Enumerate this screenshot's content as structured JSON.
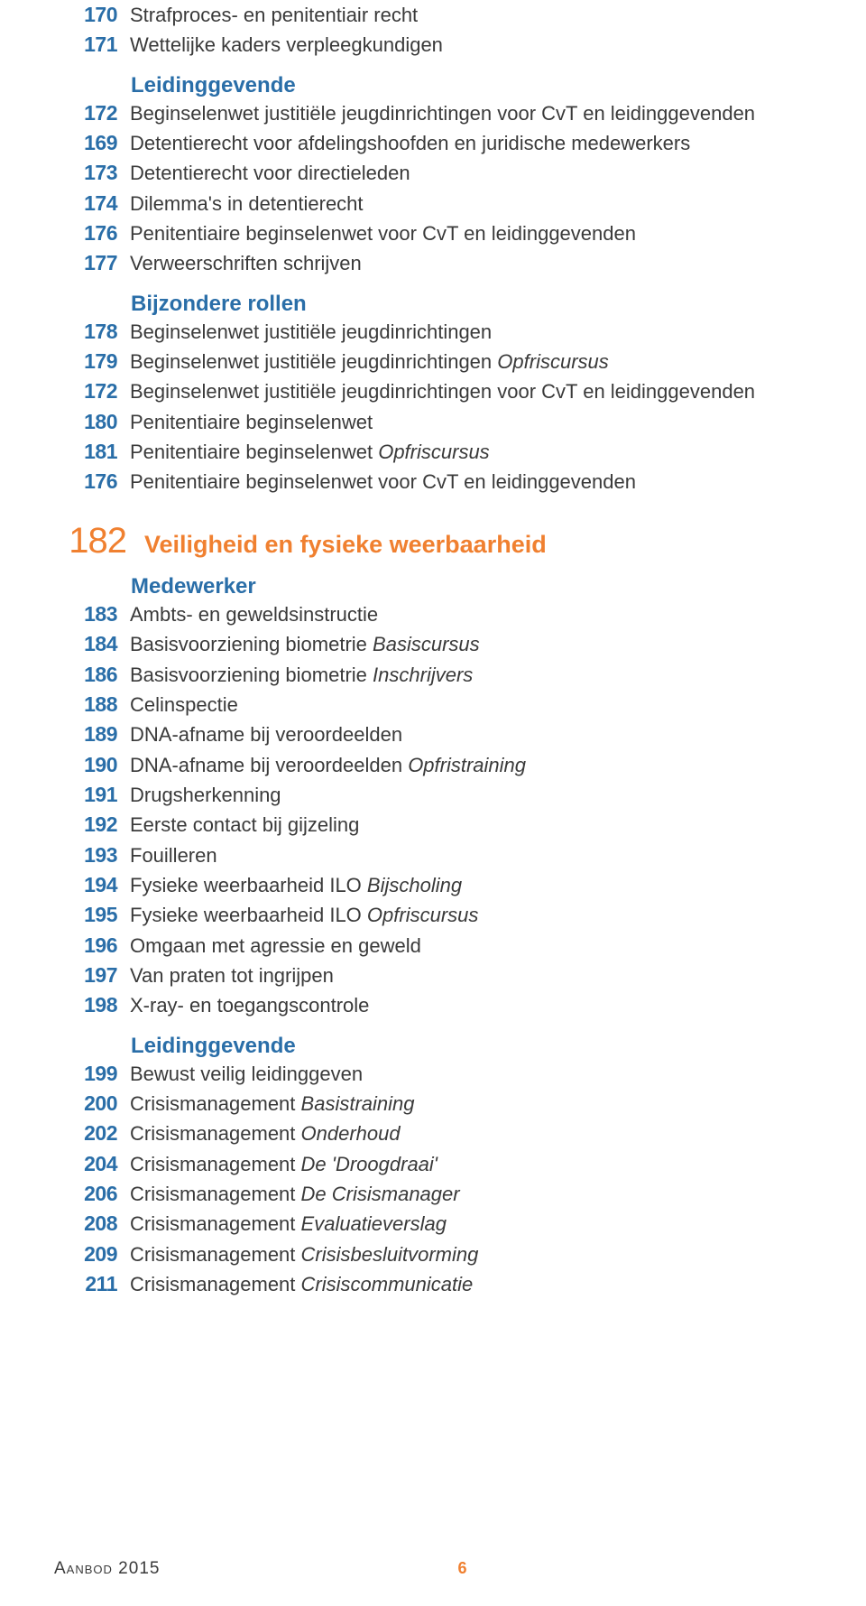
{
  "colors": {
    "blue": "#2a6ea8",
    "orange": "#f08030",
    "text": "#3a3a3a",
    "bg": "#ffffff"
  },
  "typography": {
    "row_fontsize": 22,
    "heading_fontsize": 24,
    "section_num_fontsize": 40,
    "section_title_fontsize": 27,
    "num_weight": 700
  },
  "groups": [
    {
      "items": [
        {
          "num": "170",
          "text": "Strafproces- en penitentiair recht"
        },
        {
          "num": "171",
          "text": "Wettelijke kaders verpleegkundigen"
        }
      ]
    },
    {
      "heading": "Leidinggevende",
      "items": [
        {
          "num": "172",
          "text": "Beginselenwet justitiële jeugdinrichtingen voor CvT en leidinggevenden"
        },
        {
          "num": "169",
          "text": "Detentierecht voor afdelingshoofden en juridische medewerkers"
        },
        {
          "num": "173",
          "text": "Detentierecht voor directieleden"
        },
        {
          "num": "174",
          "text": "Dilemma's in detentierecht"
        },
        {
          "num": "176",
          "text": "Penitentiaire beginselenwet voor CvT en leidinggevenden"
        },
        {
          "num": "177",
          "text": "Verweerschriften schrijven"
        }
      ]
    },
    {
      "heading": "Bijzondere rollen",
      "items": [
        {
          "num": "178",
          "text": "Beginselenwet justitiële jeugdinrichtingen"
        },
        {
          "num": "179",
          "text": "Beginselenwet justitiële jeugdinrichtingen",
          "italic": "Opfriscursus"
        },
        {
          "num": "172",
          "text": "Beginselenwet justitiële jeugdinrichtingen voor CvT en leidinggevenden"
        },
        {
          "num": "180",
          "text": "Penitentiaire beginselenwet"
        },
        {
          "num": "181",
          "text": "Penitentiaire beginselenwet",
          "italic": "Opfriscursus"
        },
        {
          "num": "176",
          "text": "Penitentiaire beginselenwet voor CvT en leidinggevenden"
        }
      ]
    }
  ],
  "section": {
    "num": "182",
    "title": "Veiligheid en fysieke weerbaarheid"
  },
  "groups2": [
    {
      "heading": "Medewerker",
      "items": [
        {
          "num": "183",
          "text": "Ambts- en geweldsinstructie"
        },
        {
          "num": "184",
          "text": "Basisvoorziening biometrie",
          "italic": "Basiscursus"
        },
        {
          "num": "186",
          "text": "Basisvoorziening biometrie",
          "italic": "Inschrijvers"
        },
        {
          "num": "188",
          "text": "Celinspectie"
        },
        {
          "num": "189",
          "text": "DNA-afname bij veroordeelden"
        },
        {
          "num": "190",
          "text": "DNA-afname bij veroordeelden",
          "italic": "Opfristraining"
        },
        {
          "num": "191",
          "text": "Drugsherkenning"
        },
        {
          "num": "192",
          "text": "Eerste contact bij gijzeling"
        },
        {
          "num": "193",
          "text": "Fouilleren"
        },
        {
          "num": "194",
          "text": "Fysieke weerbaarheid ILO",
          "italic": "Bijscholing"
        },
        {
          "num": "195",
          "text": "Fysieke weerbaarheid ILO",
          "italic": "Opfriscursus"
        },
        {
          "num": "196",
          "text": "Omgaan met agressie en geweld"
        },
        {
          "num": "197",
          "text": "Van praten tot ingrijpen"
        },
        {
          "num": "198",
          "text": "X-ray- en toegangscontrole"
        }
      ]
    },
    {
      "heading": "Leidinggevende",
      "items": [
        {
          "num": "199",
          "text": "Bewust veilig leidinggeven"
        },
        {
          "num": "200",
          "text": "Crisismanagement",
          "italic": "Basistraining"
        },
        {
          "num": "202",
          "text": "Crisismanagement",
          "italic": "Onderhoud"
        },
        {
          "num": "204",
          "text": "Crisismanagement",
          "italic": "De 'Droogdraai'"
        },
        {
          "num": "206",
          "text": "Crisismanagement",
          "italic": "De Crisismanager"
        },
        {
          "num": "208",
          "text": "Crisismanagement",
          "italic": "Evaluatieverslag"
        },
        {
          "num": "209",
          "text": "Crisismanagement",
          "italic": "Crisisbesluitvorming"
        },
        {
          "num": "211",
          "text": "Crisismanagement",
          "italic": "Crisiscommunicatie"
        }
      ]
    }
  ],
  "footer": {
    "label": "Aanbod 2015",
    "page": "6"
  }
}
